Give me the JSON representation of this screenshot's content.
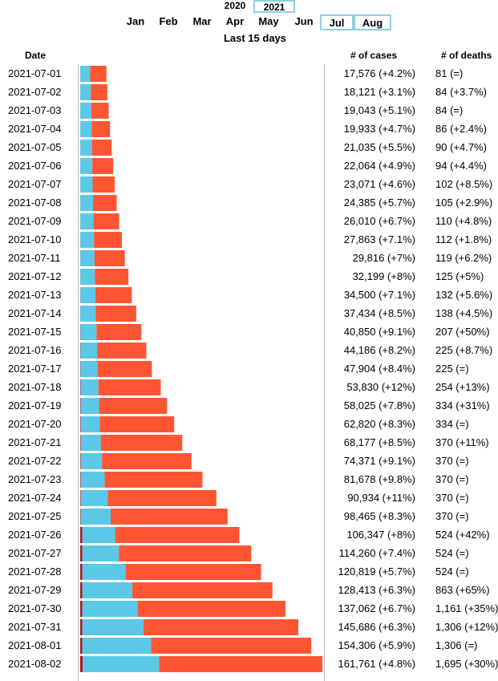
{
  "controls": {
    "years": [
      {
        "label": "2020",
        "selected": false
      },
      {
        "label": "2021",
        "selected": true
      }
    ],
    "months": [
      {
        "label": "Jan",
        "selected": false
      },
      {
        "label": "Feb",
        "selected": false
      },
      {
        "label": "Mar",
        "selected": false
      },
      {
        "label": "Apr",
        "selected": false
      },
      {
        "label": "May",
        "selected": false
      },
      {
        "label": "Jun",
        "selected": false
      },
      {
        "label": "Jul",
        "selected": true
      },
      {
        "label": "Aug",
        "selected": true
      }
    ],
    "range_label": "Last 15 days"
  },
  "colors": {
    "recovered": "#5bc8e8",
    "active": "#ff5533",
    "deaths": "#b2151c",
    "grid": "#bbbbbb"
  },
  "chart_data": {
    "type": "bar",
    "orientation": "horizontal",
    "stacked": true,
    "columns": {
      "date": "Date",
      "cases": "# of cases",
      "deaths": "# of deaths"
    },
    "categories": [
      "2021-07-01",
      "2021-07-02",
      "2021-07-03",
      "2021-07-04",
      "2021-07-05",
      "2021-07-06",
      "2021-07-07",
      "2021-07-08",
      "2021-07-09",
      "2021-07-10",
      "2021-07-11",
      "2021-07-12",
      "2021-07-13",
      "2021-07-14",
      "2021-07-15",
      "2021-07-16",
      "2021-07-17",
      "2021-07-18",
      "2021-07-19",
      "2021-07-20",
      "2021-07-21",
      "2021-07-22",
      "2021-07-23",
      "2021-07-24",
      "2021-07-25",
      "2021-07-26",
      "2021-07-27",
      "2021-07-28",
      "2021-07-29",
      "2021-07-30",
      "2021-07-31",
      "2021-08-01",
      "2021-08-02"
    ],
    "cases": [
      17576,
      18121,
      19043,
      19933,
      21035,
      22064,
      23071,
      24385,
      26010,
      27863,
      29816,
      32199,
      34500,
      37434,
      40850,
      44186,
      47904,
      53830,
      58025,
      62820,
      68177,
      74371,
      81678,
      90934,
      98465,
      106347,
      114260,
      120819,
      128413,
      137062,
      145686,
      154306,
      161761
    ],
    "deaths": [
      81,
      84,
      84,
      86,
      90,
      94,
      102,
      105,
      110,
      112,
      119,
      125,
      132,
      138,
      207,
      225,
      225,
      254,
      334,
      334,
      370,
      370,
      370,
      370,
      370,
      524,
      524,
      524,
      863,
      1161,
      1306,
      1306,
      1695
    ],
    "recovered": [
      6600,
      7000,
      7300,
      7600,
      7800,
      8000,
      8200,
      8500,
      8800,
      9100,
      9400,
      9700,
      10000,
      10300,
      10700,
      11100,
      11500,
      11900,
      12300,
      12700,
      13400,
      14200,
      16000,
      18000,
      20000,
      22000,
      24500,
      29000,
      33500,
      37000,
      41000,
      46000,
      51000
    ],
    "cases_labels": [
      "17,576 (+4.2%)",
      "18,121 (+3.1%)",
      "19,043 (+5.1%)",
      "19,933 (+4.7%)",
      "21,035 (+5.5%)",
      "22,064 (+4.9%)",
      "23,071 (+4.6%)",
      "24,385 (+5.7%)",
      "26,010 (+6.7%)",
      "27,863 (+7.1%)",
      "29,816 (+7%)",
      "32,199 (+8%)",
      "34,500 (+7.1%)",
      "37,434 (+8.5%)",
      "40,850 (+9.1%)",
      "44,186 (+8.2%)",
      "47,904 (+8.4%)",
      "53,830 (+12%)",
      "58,025 (+7.8%)",
      "62,820 (+8.3%)",
      "68,177 (+8.5%)",
      "74,371 (+9.1%)",
      "81,678 (+9.8%)",
      "90,934 (+11%)",
      "98,465 (+8.3%)",
      "106,347 (+8%)",
      "114,260 (+7.4%)",
      "120,819 (+5.7%)",
      "128,413 (+6.3%)",
      "137,062 (+6.7%)",
      "145,686 (+6.3%)",
      "154,306 (+5.9%)",
      "161,761 (+4.8%)"
    ],
    "deaths_labels": [
      "81 (=)",
      "84 (+3.7%)",
      "84 (=)",
      "86 (+2.4%)",
      "90 (+4.7%)",
      "94 (+4.4%)",
      "102 (+8.5%)",
      "105 (+2.9%)",
      "110 (+4.8%)",
      "112 (+1.8%)",
      "119 (+6.2%)",
      "125 (+5%)",
      "132 (+5.6%)",
      "138 (+4.5%)",
      "207 (+50%)",
      "225 (+8.7%)",
      "225 (=)",
      "254 (+13%)",
      "334 (+31%)",
      "334 (=)",
      "370 (+11%)",
      "370 (=)",
      "370 (=)",
      "370 (=)",
      "370 (=)",
      "524 (+42%)",
      "524 (=)",
      "524 (=)",
      "863 (+65%)",
      "1,161 (+35%)",
      "1,306 (+12%)",
      "1,306 (=)",
      "1,695 (+30%)"
    ],
    "xlim": [
      0,
      161761
    ]
  }
}
